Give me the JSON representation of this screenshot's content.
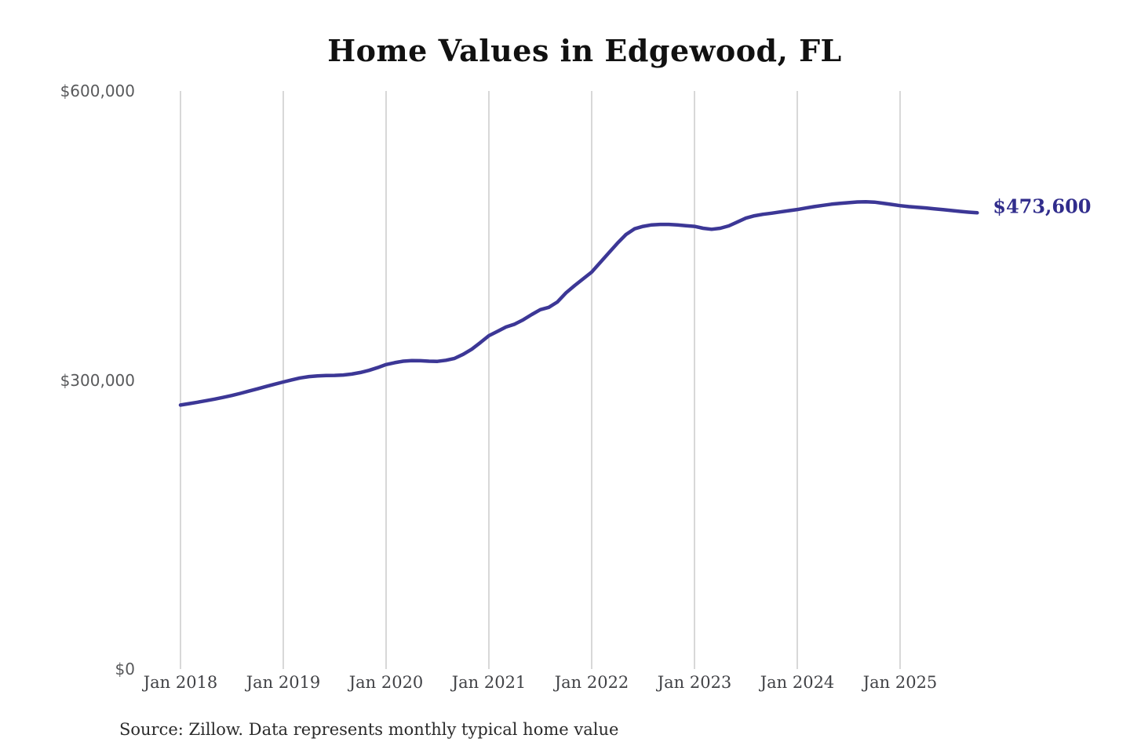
{
  "chart_data": {
    "type": "line",
    "title": "Home Values in Edgewood, FL",
    "source": "Source: Zillow. Data represents monthly typical home value",
    "end_label": "$473,600",
    "end_value": 473600,
    "unit": "USD",
    "frequency": "monthly",
    "x_start": "Jan 2018",
    "x_end": "Oct 2025",
    "ylim": [
      0,
      600000
    ],
    "grid": "vertical gridlines at each January, no horizontal gridlines",
    "legend": "none",
    "x_tick_labels": [
      "Jan 2018",
      "Jan 2019",
      "Jan 2020",
      "Jan 2021",
      "Jan 2022",
      "Jan 2023",
      "Jan 2024",
      "Jan 2025"
    ],
    "x_tick_month_index": [
      0,
      12,
      24,
      36,
      48,
      60,
      72,
      84
    ],
    "y_ticks": [
      {
        "label": "$0",
        "value": 0
      },
      {
        "label": "$300,000",
        "value": 300000
      },
      {
        "label": "$600,000",
        "value": 600000
      }
    ],
    "colors": {
      "line": "#3c3796",
      "end_label": "#312d8c",
      "grid": "#cccccc",
      "y_axis_text": "#58595b",
      "x_axis_text": "#414246",
      "title_text": "#111111",
      "source_text": "#2b2b2b"
    },
    "series": [
      {
        "name": "Typical home value",
        "start_month": "2018-01",
        "values": [
          274000,
          275500,
          277000,
          278600,
          280200,
          282000,
          284000,
          286200,
          288500,
          290900,
          293300,
          295700,
          298000,
          300200,
          302200,
          303600,
          304300,
          304600,
          304800,
          305200,
          306200,
          307800,
          310000,
          312900,
          316000,
          318000,
          319500,
          320200,
          320000,
          319500,
          319400,
          320500,
          322500,
          326700,
          332000,
          338800,
          346000,
          350500,
          355000,
          358000,
          362500,
          368000,
          373000,
          375500,
          381000,
          390500,
          398000,
          405000,
          412000,
          422000,
          432000,
          442000,
          451000,
          457000,
          459500,
          461000,
          461500,
          461500,
          461000,
          460200,
          459500,
          457500,
          456500,
          457500,
          460000,
          464000,
          468000,
          470500,
          472000,
          473200,
          474500,
          475800,
          477000,
          478500,
          480000,
          481300,
          482500,
          483400,
          484100,
          484800,
          485000,
          484600,
          483500,
          482300,
          481000,
          480000,
          479300,
          478600,
          477700,
          476800,
          475900,
          475000,
          474200,
          473600
        ]
      }
    ]
  }
}
